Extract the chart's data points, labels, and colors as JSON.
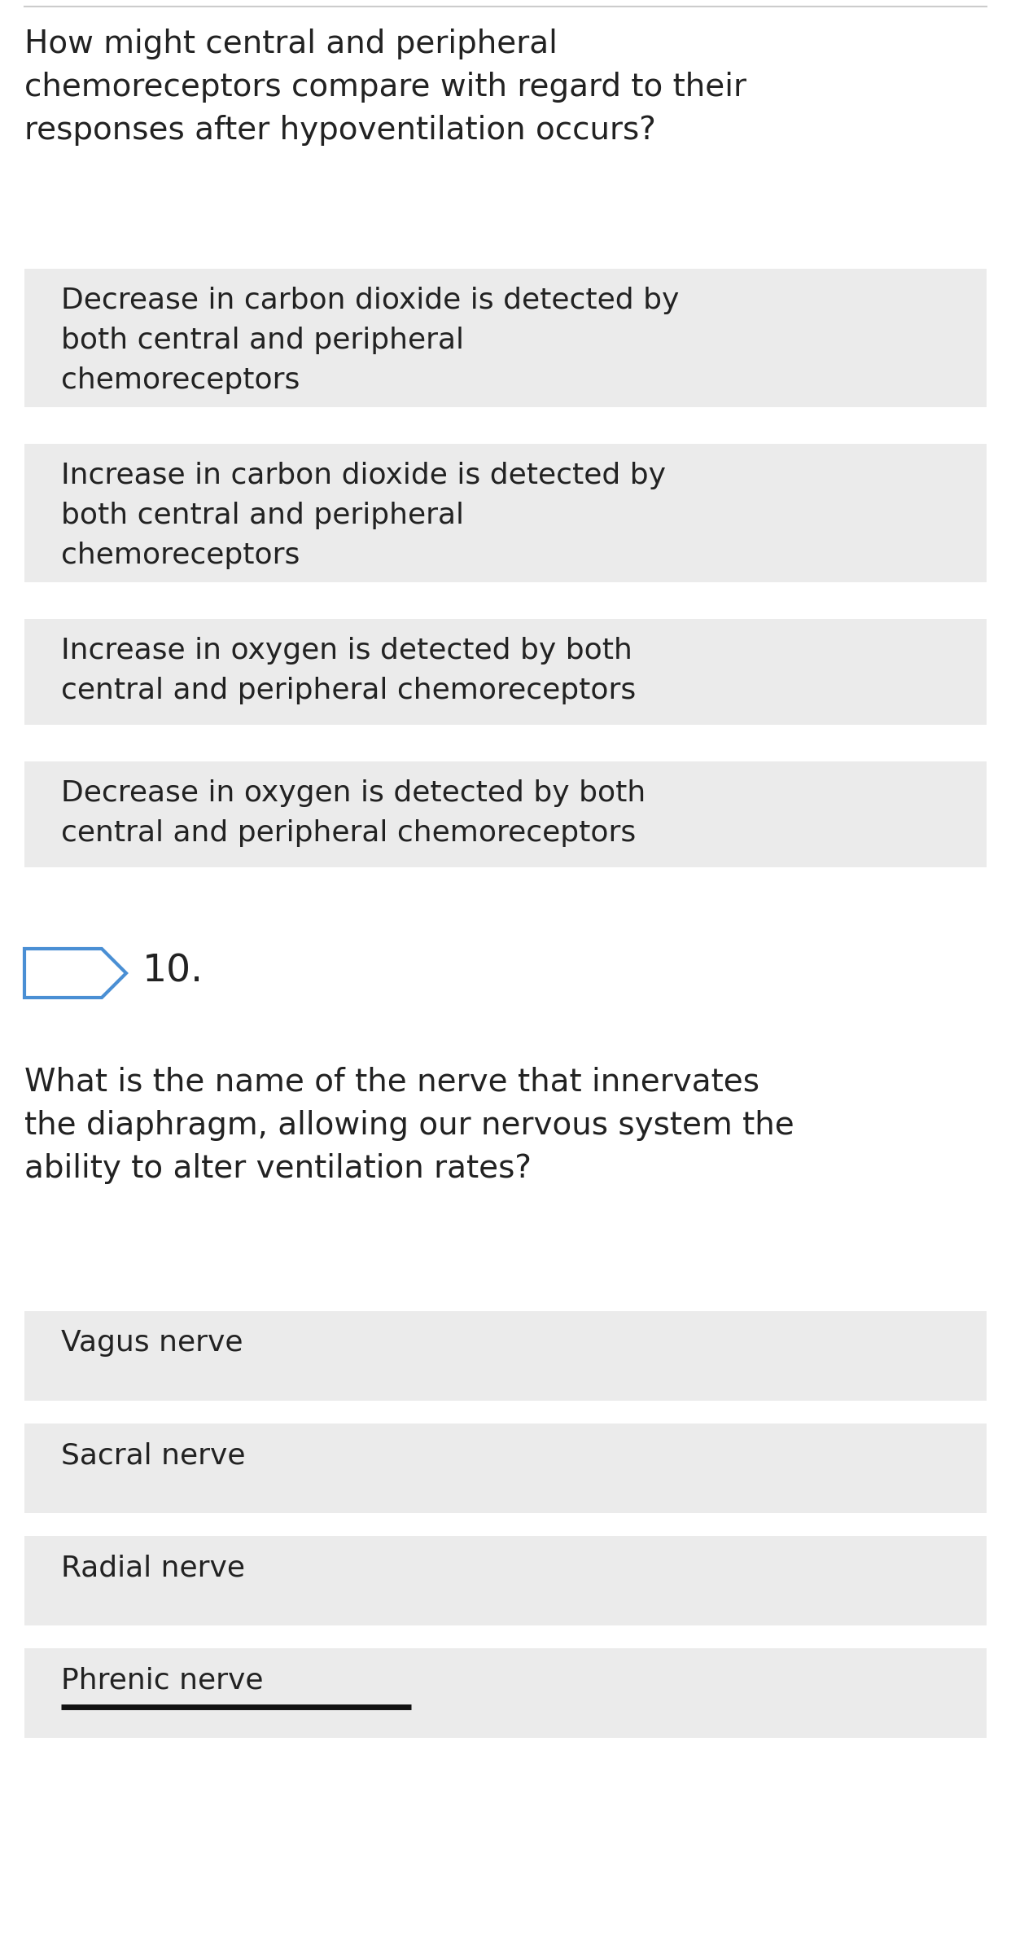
{
  "bg_color": "#ffffff",
  "question_text_color": "#222222",
  "option_bg_color": "#ebebeb",
  "option_text_color": "#222222",
  "number_badge_color": "#4a8fd4",
  "top_line_color": "#cccccc",
  "question1": "How might central and peripheral\nchemoreceptors compare with regard to their\nresponses after hypoventilation occurs?",
  "options1": [
    "Decrease in carbon dioxide is detected by\nboth central and peripheral\nchemoreceptors",
    "Increase in carbon dioxide is detected by\nboth central and peripheral\nchemoreceptors",
    "Increase in oxygen is detected by both\ncentral and peripheral chemoreceptors",
    "Decrease in oxygen is detected by both\ncentral and peripheral chemoreceptors"
  ],
  "question_number2": "10.",
  "question2": "What is the name of the nerve that innervates\nthe diaphragm, allowing our nervous system the\nability to alter ventilation rates?",
  "options2": [
    "Vagus nerve",
    "Sacral nerve",
    "Radial nerve",
    "Phrenic nerve"
  ],
  "underline_option_index": 3,
  "question_fontsize": 28,
  "option_fontsize": 26,
  "number_fontsize": 34
}
